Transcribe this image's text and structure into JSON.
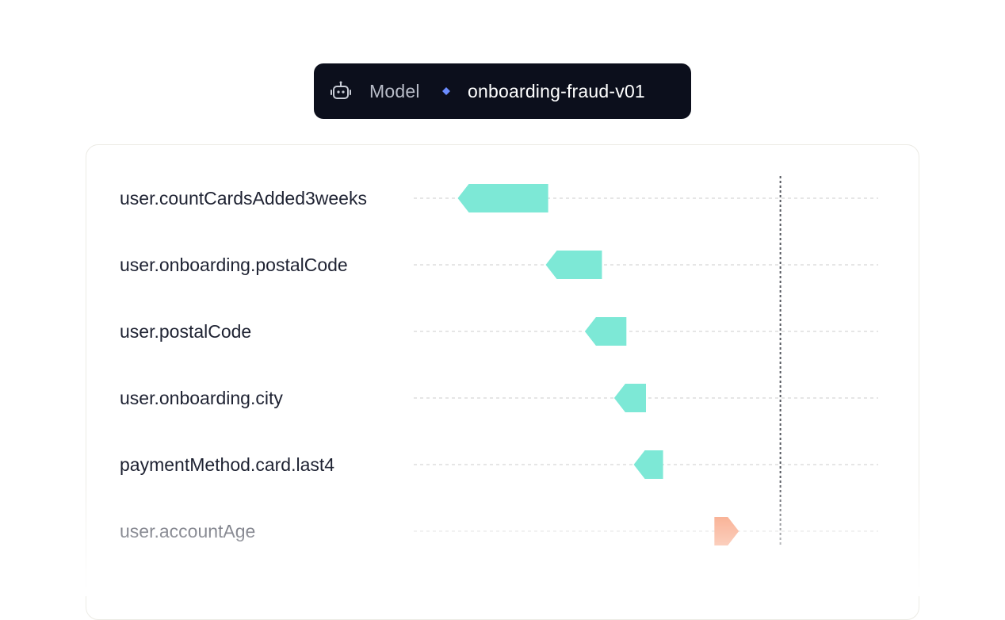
{
  "header": {
    "model_label": "Model",
    "model_name": "onboarding-fraud-v01",
    "robot_icon": "robot-icon",
    "diamond_icon": "diamond-icon",
    "diamond_color": "#6b8cff"
  },
  "chart_data": {
    "type": "bar",
    "orientation": "horizontal",
    "baseline": 0,
    "categories": [
      "user.countCardsAdded3weeks",
      "user.onboarding.postalCode",
      "user.postalCode",
      "user.onboarding.city",
      "paymentMethod.card.last4",
      "user.accountAge"
    ],
    "start": [
      -0.95,
      -0.73,
      -0.63,
      -0.55,
      -0.48,
      -0.27
    ],
    "end": [
      -1.32,
      -0.96,
      -0.8,
      -0.68,
      -0.6,
      -0.17
    ],
    "xlim": [
      -1.5,
      0.4
    ],
    "colors": {
      "negative": "#7de8d6",
      "positive": "#f68c62",
      "baseline": "#55585f",
      "gridline": "#dedede"
    },
    "grid": true,
    "legend": "none"
  }
}
